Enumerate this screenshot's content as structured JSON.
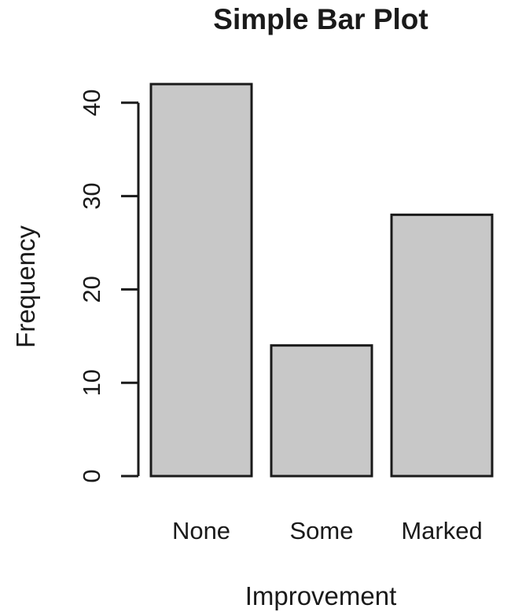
{
  "chart_data": {
    "type": "bar",
    "title": "Simple Bar Plot",
    "xlabel": "Improvement",
    "ylabel": "Frequency",
    "categories": [
      "None",
      "Some",
      "Marked"
    ],
    "values": [
      42,
      14,
      28
    ],
    "ylim": [
      0,
      44
    ],
    "yticks": [
      0,
      10,
      20,
      30,
      40
    ],
    "bar_color": "#c8c8c8",
    "bar_edge_color": "#1a1a1a",
    "grid": false,
    "legend": "none"
  }
}
